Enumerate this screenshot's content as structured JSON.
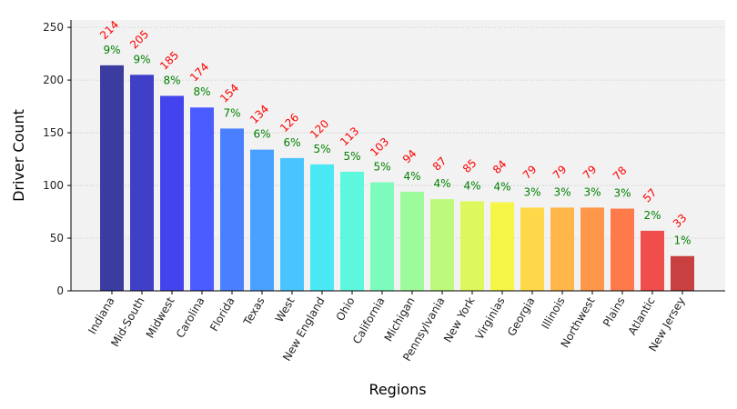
{
  "chart_data": {
    "type": "bar",
    "xlabel": "Regions",
    "ylabel": "Driver Count",
    "ylim": [
      0,
      257
    ],
    "yticks": [
      0,
      50,
      100,
      150,
      200,
      250
    ],
    "grid": "y-dotted",
    "background": "#f2f2f2",
    "colormap": "jet-like (dark blue to red)",
    "categories": [
      "Indiana",
      "Mid-South",
      "Midwest",
      "Carolina",
      "Florida",
      "Texas",
      "West",
      "New England",
      "Ohio",
      "California",
      "Michigan",
      "Pennsylvania",
      "New York",
      "Virginias",
      "Georgia",
      "Illinois",
      "Northwest",
      "Plains",
      "Atlantic",
      "New Jersey"
    ],
    "values": [
      214,
      205,
      185,
      174,
      154,
      134,
      126,
      120,
      113,
      103,
      94,
      87,
      85,
      84,
      79,
      79,
      79,
      78,
      57,
      33
    ],
    "percent_labels": [
      "9%",
      "9%",
      "8%",
      "8%",
      "7%",
      "6%",
      "6%",
      "5%",
      "5%",
      "5%",
      "4%",
      "4%",
      "4%",
      "4%",
      "3%",
      "3%",
      "3%",
      "3%",
      "2%",
      "1%"
    ],
    "value_label_color": "#ff0000",
    "percent_label_color": "#008000",
    "bar_colors": [
      "#3b3ba0",
      "#3f3fc8",
      "#4444ee",
      "#4a5bff",
      "#4a80ff",
      "#4aa0ff",
      "#4ac4ff",
      "#4ae8f5",
      "#5cf7dd",
      "#7dfbbd",
      "#9efb9b",
      "#bdf97c",
      "#dcf85c",
      "#f5f545",
      "#ffd84a",
      "#ffb74a",
      "#ff974a",
      "#ff7a4a",
      "#f04e4a",
      "#c84040"
    ]
  }
}
